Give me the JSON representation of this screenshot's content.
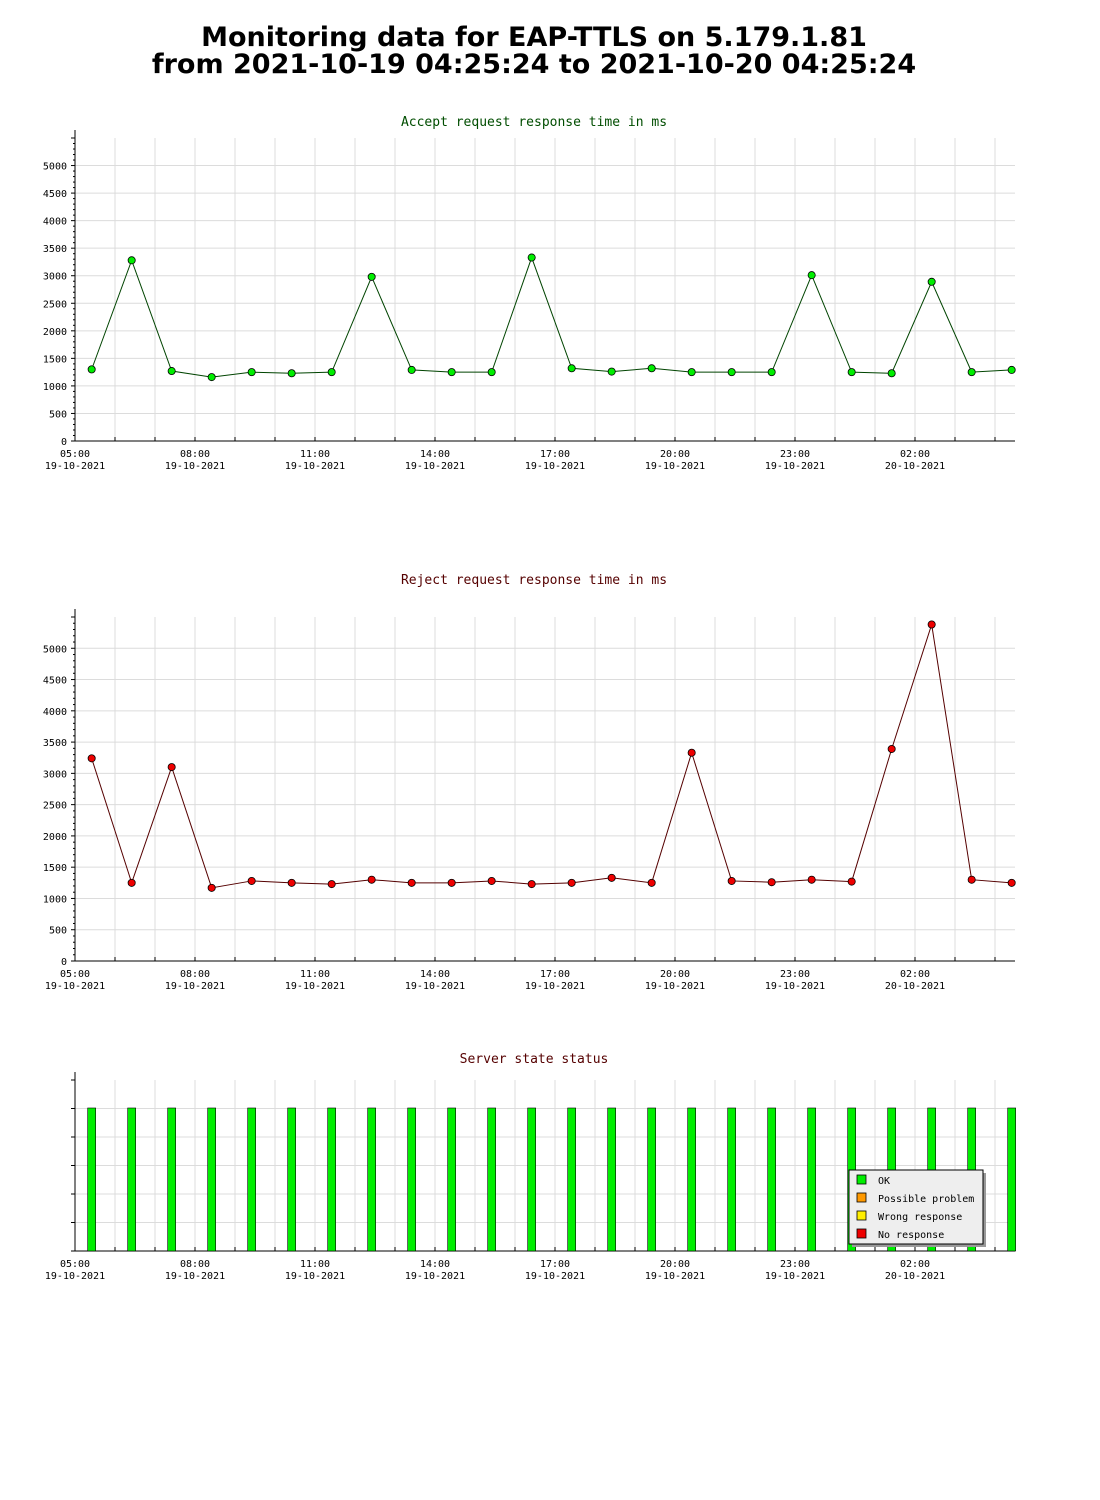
{
  "page": {
    "title_line1": "Monitoring data for EAP-TTLS on 5.179.1.81",
    "title_line2": "from 2021-10-19 04:25:24 to 2021-10-20 04:25:24"
  },
  "colors": {
    "grid": "#dcdcdc",
    "accept_line": "#004400",
    "accept_marker": "#00ee00",
    "accept_title": "#004d00",
    "reject_line": "#550000",
    "reject_marker": "#ee0000",
    "reject_title": "#550000",
    "status_title": "#550000",
    "ok": "#00ee00",
    "possible_problem": "#ff9900",
    "wrong_response": "#ffee00",
    "no_response": "#ee0000"
  },
  "x_ticks": [
    {
      "time": "05:00",
      "date": "19-10-2021"
    },
    {
      "time": "08:00",
      "date": "19-10-2021"
    },
    {
      "time": "11:00",
      "date": "19-10-2021"
    },
    {
      "time": "14:00",
      "date": "19-10-2021"
    },
    {
      "time": "17:00",
      "date": "19-10-2021"
    },
    {
      "time": "20:00",
      "date": "19-10-2021"
    },
    {
      "time": "23:00",
      "date": "19-10-2021"
    },
    {
      "time": "02:00",
      "date": "20-10-2021"
    }
  ],
  "chart_data": [
    {
      "type": "line",
      "title": "Accept request response time in ms",
      "x": [
        "05:25",
        "06:25",
        "07:25",
        "08:25",
        "09:25",
        "10:25",
        "11:25",
        "12:25",
        "13:25",
        "14:25",
        "15:25",
        "16:25",
        "17:25",
        "18:25",
        "19:25",
        "20:25",
        "21:25",
        "22:25",
        "23:25",
        "00:25",
        "01:25",
        "02:25",
        "03:25",
        "04:25"
      ],
      "values": [
        1300,
        3280,
        1270,
        1160,
        1250,
        1230,
        1250,
        2980,
        1290,
        1250,
        1250,
        3330,
        1320,
        1260,
        1320,
        1250,
        1250,
        1250,
        3010,
        1250,
        1230,
        2890,
        1250,
        1290
      ],
      "ylim": [
        0,
        5500
      ],
      "y_ticks": [
        "0",
        "500",
        "1000",
        "1500",
        "2000",
        "2500",
        "3000",
        "3500",
        "4000",
        "4500",
        "5000"
      ],
      "grid": true
    },
    {
      "type": "line",
      "title": "Reject request response time in ms",
      "x": [
        "05:25",
        "06:25",
        "07:25",
        "08:25",
        "09:25",
        "10:25",
        "11:25",
        "12:25",
        "13:25",
        "14:25",
        "15:25",
        "16:25",
        "17:25",
        "18:25",
        "19:25",
        "20:25",
        "21:25",
        "22:25",
        "23:25",
        "00:25",
        "01:25",
        "02:25",
        "03:25",
        "04:25"
      ],
      "values": [
        3240,
        1250,
        3100,
        1170,
        1280,
        1250,
        1230,
        1300,
        1250,
        1250,
        1280,
        1230,
        1250,
        1330,
        1250,
        3330,
        1280,
        1260,
        1300,
        1270,
        3390,
        5380,
        1300,
        1250
      ],
      "ylim": [
        0,
        5500
      ],
      "y_ticks": [
        "0",
        "500",
        "1000",
        "1500",
        "2000",
        "2500",
        "3000",
        "3500",
        "4000",
        "4500",
        "5000"
      ],
      "grid": true
    },
    {
      "type": "bar",
      "title": "Server state status",
      "x": [
        "05:25",
        "06:25",
        "07:25",
        "08:25",
        "09:25",
        "10:25",
        "11:25",
        "12:25",
        "13:25",
        "14:25",
        "15:25",
        "16:25",
        "17:25",
        "18:25",
        "19:25",
        "20:25",
        "21:25",
        "22:25",
        "23:25",
        "00:25",
        "01:25",
        "02:25",
        "03:25",
        "04:25"
      ],
      "values": [
        "OK",
        "OK",
        "OK",
        "OK",
        "OK",
        "OK",
        "OK",
        "OK",
        "OK",
        "OK",
        "OK",
        "OK",
        "OK",
        "OK",
        "OK",
        "OK",
        "OK",
        "OK",
        "OK",
        "OK",
        "OK",
        "OK",
        "OK",
        "OK"
      ],
      "legend": {
        "placement": "bottom-right",
        "items": [
          {
            "label": "OK",
            "color": "#00ee00"
          },
          {
            "label": "Possible problem",
            "color": "#ff9900"
          },
          {
            "label": "Wrong response",
            "color": "#ffee00"
          },
          {
            "label": "No response",
            "color": "#ee0000"
          }
        ]
      }
    }
  ]
}
